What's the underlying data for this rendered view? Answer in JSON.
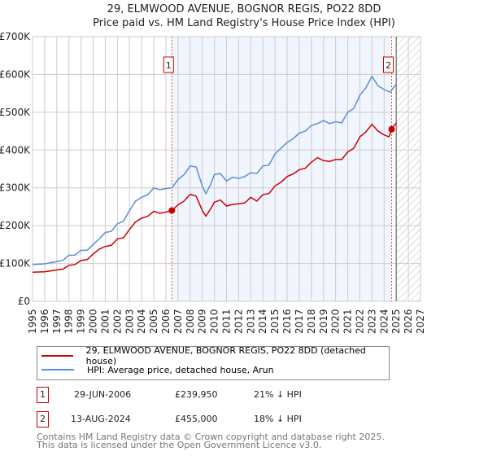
{
  "chart_data": {
    "type": "line",
    "title": "29, ELMWOOD AVENUE, BOGNOR REGIS, PO22 8DD",
    "subtitle": "Price paid vs. HM Land Registry's House Price Index (HPI)",
    "xlim": [
      1995,
      2027
    ],
    "ylim": [
      0,
      700000
    ],
    "x_ticks": [
      "1995",
      "1996",
      "1997",
      "1998",
      "1999",
      "2000",
      "2001",
      "2002",
      "2003",
      "2004",
      "2005",
      "2006",
      "2007",
      "2008",
      "2009",
      "2010",
      "2011",
      "2012",
      "2013",
      "2014",
      "2015",
      "2016",
      "2017",
      "2018",
      "2019",
      "2020",
      "2021",
      "2022",
      "2023",
      "2024",
      "2025",
      "2026",
      "2027"
    ],
    "y_ticks": [
      {
        "v": 0,
        "label": "£0"
      },
      {
        "v": 100000,
        "label": "£100K"
      },
      {
        "v": 200000,
        "label": "£200K"
      },
      {
        "v": 300000,
        "label": "£300K"
      },
      {
        "v": 400000,
        "label": "£400K"
      },
      {
        "v": 500000,
        "label": "£500K"
      },
      {
        "v": 600000,
        "label": "£600K"
      },
      {
        "v": 700000,
        "label": "£700K"
      }
    ],
    "grid": true,
    "shaded_range": [
      2006.49,
      2024.62
    ],
    "forecast_from": 2025.0,
    "series": [
      {
        "name": "29, ELMWOOD AVENUE, BOGNOR REGIS, PO22 8DD (detached house)",
        "color": "#cc0000",
        "x": [
          1995,
          1996,
          1997,
          1997.5,
          1998,
          1998.5,
          1999,
          1999.5,
          2000,
          2000.5,
          2001,
          2001.5,
          2002,
          2002.5,
          2003,
          2003.5,
          2004,
          2004.5,
          2005,
          2005.5,
          2006,
          2006.49,
          2007,
          2007.5,
          2008,
          2008.5,
          2009,
          2009.3,
          2009.7,
          2010,
          2010.5,
          2011,
          2011.5,
          2012,
          2012.5,
          2013,
          2013.5,
          2014,
          2014.5,
          2015,
          2015.5,
          2016,
          2016.5,
          2017,
          2017.5,
          2018,
          2018.5,
          2019,
          2019.5,
          2020,
          2020.5,
          2021,
          2021.5,
          2022,
          2022.5,
          2023,
          2023.5,
          2024,
          2024.4,
          2024.62,
          2025
        ],
        "values": [
          77000,
          78000,
          83000,
          85000,
          95000,
          97000,
          108000,
          110000,
          125000,
          138000,
          145000,
          148000,
          165000,
          168000,
          190000,
          210000,
          220000,
          225000,
          238000,
          233000,
          236000,
          239950,
          255000,
          265000,
          283000,
          278000,
          240000,
          225000,
          245000,
          262000,
          268000,
          252000,
          256000,
          258000,
          260000,
          275000,
          265000,
          282000,
          285000,
          305000,
          315000,
          330000,
          337000,
          348000,
          352000,
          368000,
          380000,
          372000,
          370000,
          375000,
          375000,
          395000,
          405000,
          435000,
          448000,
          468000,
          450000,
          440000,
          435000,
          455000,
          472000
        ]
      },
      {
        "name": "HPI: Average price, detached house, Arun",
        "color": "#5b8fd4",
        "x": [
          1995,
          1995.5,
          1996,
          1997,
          1997.5,
          1998,
          1998.5,
          1999,
          1999.5,
          2000,
          2000.5,
          2001,
          2001.5,
          2002,
          2002.5,
          2003,
          2003.5,
          2004,
          2004.5,
          2005,
          2005.5,
          2006,
          2006.5,
          2007,
          2007.5,
          2008,
          2008.5,
          2009,
          2009.3,
          2009.7,
          2010,
          2010.5,
          2011,
          2011.5,
          2012,
          2012.5,
          2013,
          2013.5,
          2014,
          2014.5,
          2015,
          2015.5,
          2016,
          2016.5,
          2017,
          2017.5,
          2018,
          2018.5,
          2019,
          2019.5,
          2020,
          2020.5,
          2021,
          2021.5,
          2022,
          2022.5,
          2023,
          2023.5,
          2024,
          2024.5,
          2025
        ],
        "values": [
          97000,
          98000,
          99000,
          105000,
          108000,
          122000,
          122000,
          135000,
          135000,
          150000,
          165000,
          182000,
          185000,
          205000,
          212000,
          240000,
          265000,
          275000,
          282000,
          300000,
          295000,
          298000,
          300000,
          322000,
          335000,
          358000,
          355000,
          305000,
          285000,
          310000,
          335000,
          338000,
          318000,
          328000,
          325000,
          330000,
          340000,
          338000,
          358000,
          360000,
          390000,
          405000,
          420000,
          430000,
          445000,
          450000,
          465000,
          470000,
          478000,
          470000,
          475000,
          472000,
          500000,
          510000,
          545000,
          565000,
          595000,
          570000,
          560000,
          553000,
          575000
        ]
      }
    ],
    "sales": [
      {
        "id": "1",
        "x": 2006.49,
        "value": 239950,
        "date": "29-JUN-2006",
        "price": "£239,950",
        "hpi": "21% ↓ HPI"
      },
      {
        "id": "2",
        "x": 2024.62,
        "value": 455000,
        "date": "13-AUG-2024",
        "price": "£455,000",
        "hpi": "18% ↓ HPI"
      }
    ]
  },
  "footer": {
    "line1": "Contains HM Land Registry data © Crown copyright and database right 2025.",
    "line2": "This data is licensed under the Open Government Licence v3.0."
  }
}
